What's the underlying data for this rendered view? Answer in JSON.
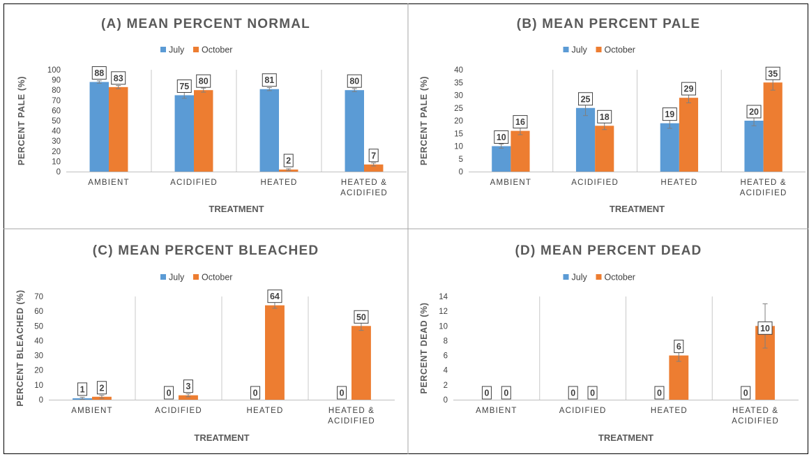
{
  "figure": {
    "colors": {
      "july": "#5B9BD5",
      "october": "#ED7D31",
      "grid": "#c8c8c8",
      "axis": "#bfbfbf",
      "text": "#595959",
      "border": "#000000"
    }
  },
  "chart_data": [
    {
      "type": "bar",
      "title": "(A) MEAN PERCENT NORMAL",
      "xlabel": "TREATMENT",
      "ylabel": "PERCENT PALE (%)",
      "ylim": [
        0,
        100
      ],
      "yticks": [
        0,
        10,
        20,
        30,
        40,
        50,
        60,
        70,
        80,
        90,
        100
      ],
      "categories": [
        [
          "AMBIENT"
        ],
        [
          "ACIDIFIED"
        ],
        [
          "HEATED"
        ],
        [
          "HEATED &",
          "ACIDIFIED"
        ]
      ],
      "series": [
        {
          "name": "July",
          "values": [
            88,
            75,
            81,
            80
          ],
          "errors": [
            1.2,
            3,
            1.5,
            1.5
          ],
          "labels": [
            "88",
            "75",
            "81",
            "80"
          ]
        },
        {
          "name": "October",
          "values": [
            83,
            80,
            2,
            7
          ],
          "errors": [
            1.5,
            2,
            0.8,
            1.5
          ],
          "labels": [
            "83",
            "80",
            "2",
            "7"
          ]
        }
      ],
      "legend": "top-center",
      "grid": "vertical category separators"
    },
    {
      "type": "bar",
      "title": "(B) MEAN PERCENT PALE",
      "xlabel": "TREATMENT",
      "ylabel": "PERCENT PALE (%)",
      "ylim": [
        0,
        40
      ],
      "yticks": [
        0,
        5,
        10,
        15,
        20,
        25,
        30,
        35,
        40
      ],
      "categories": [
        [
          "AMBIENT"
        ],
        [
          "ACIDIFIED"
        ],
        [
          "HEATED"
        ],
        [
          "HEATED &",
          "ACIDIFIED"
        ]
      ],
      "series": [
        {
          "name": "July",
          "values": [
            10,
            25,
            19,
            20
          ],
          "errors": [
            0.8,
            3,
            2,
            2
          ],
          "labels": [
            "10",
            "25",
            "19",
            "20"
          ]
        },
        {
          "name": "October",
          "values": [
            16,
            18,
            29,
            35
          ],
          "errors": [
            1.5,
            1.5,
            2,
            3
          ],
          "labels": [
            "16",
            "18",
            "29",
            "35"
          ]
        }
      ],
      "legend": "top-center",
      "grid": "vertical category separators"
    },
    {
      "type": "bar",
      "title": "(C) MEAN PERCENT BLEACHED",
      "xlabel": "TREATMENT",
      "ylabel": "PERCENT BLEACHED (%)",
      "ylim": [
        0,
        70
      ],
      "yticks": [
        0,
        10,
        20,
        30,
        40,
        50,
        60,
        70
      ],
      "categories": [
        [
          "AMBIENT"
        ],
        [
          "ACIDIFIED"
        ],
        [
          "HEATED"
        ],
        [
          "HEATED &",
          "ACIDIFIED"
        ]
      ],
      "series": [
        {
          "name": "July",
          "values": [
            1,
            0,
            0,
            0
          ],
          "errors": [
            0.7,
            0,
            0,
            0
          ],
          "labels": [
            "1",
            "0",
            "0",
            "0"
          ]
        },
        {
          "name": "October",
          "values": [
            2,
            3,
            64,
            50
          ],
          "errors": [
            1,
            1,
            2,
            3
          ],
          "labels": [
            "2",
            "3",
            "64",
            "50"
          ]
        }
      ],
      "legend": "top-center",
      "grid": "vertical category separators"
    },
    {
      "type": "bar",
      "title": "(D) MEAN PERCENT DEAD",
      "xlabel": "TREATMENT",
      "ylabel": "PERCENT DEAD (%)",
      "ylim": [
        0,
        14
      ],
      "yticks": [
        0,
        2,
        4,
        6,
        8,
        10,
        12,
        14
      ],
      "categories": [
        [
          "AMBIENT"
        ],
        [
          "ACIDIFIED"
        ],
        [
          "HEATED"
        ],
        [
          "HEATED &",
          "ACIDIFIED"
        ]
      ],
      "series": [
        {
          "name": "July",
          "values": [
            0,
            0,
            0,
            0
          ],
          "errors": [
            0,
            0,
            0,
            0
          ],
          "labels": [
            "0",
            "0",
            "0",
            "0"
          ]
        },
        {
          "name": "October",
          "values": [
            0,
            0,
            6,
            10
          ],
          "errors": [
            0,
            0,
            0.8,
            3
          ],
          "labels": [
            "0",
            "0",
            "6",
            "10"
          ]
        }
      ],
      "legend": "top-center",
      "grid": "vertical category separators"
    }
  ]
}
